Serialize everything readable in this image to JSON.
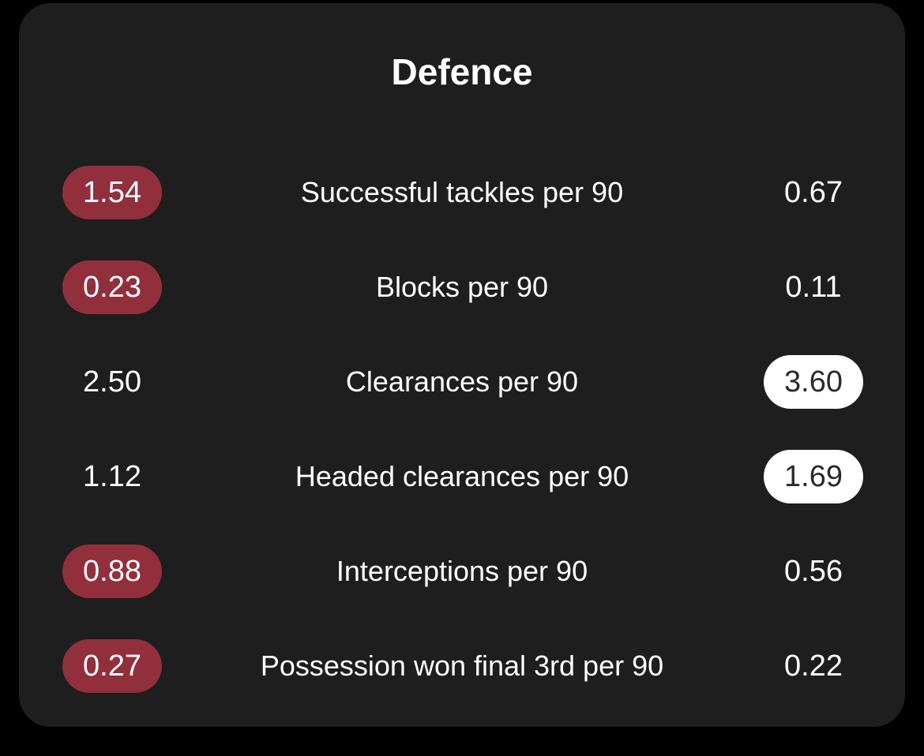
{
  "title": "Defence",
  "colors": {
    "card": "#1e1e1e",
    "highlight_left": "#922f3c",
    "highlight_right": "#ffffff"
  },
  "rows": [
    {
      "left": "1.54",
      "label": "Successful tackles per 90",
      "right": "0.67",
      "highlight": "left"
    },
    {
      "left": "0.23",
      "label": "Blocks per 90",
      "right": "0.11",
      "highlight": "left"
    },
    {
      "left": "2.50",
      "label": "Clearances per 90",
      "right": "3.60",
      "highlight": "right"
    },
    {
      "left": "1.12",
      "label": "Headed clearances per 90",
      "right": "1.69",
      "highlight": "right"
    },
    {
      "left": "0.88",
      "label": "Interceptions per 90",
      "right": "0.56",
      "highlight": "left"
    },
    {
      "left": "0.27",
      "label": "Possession won final 3rd per 90",
      "right": "0.22",
      "highlight": "left"
    }
  ]
}
